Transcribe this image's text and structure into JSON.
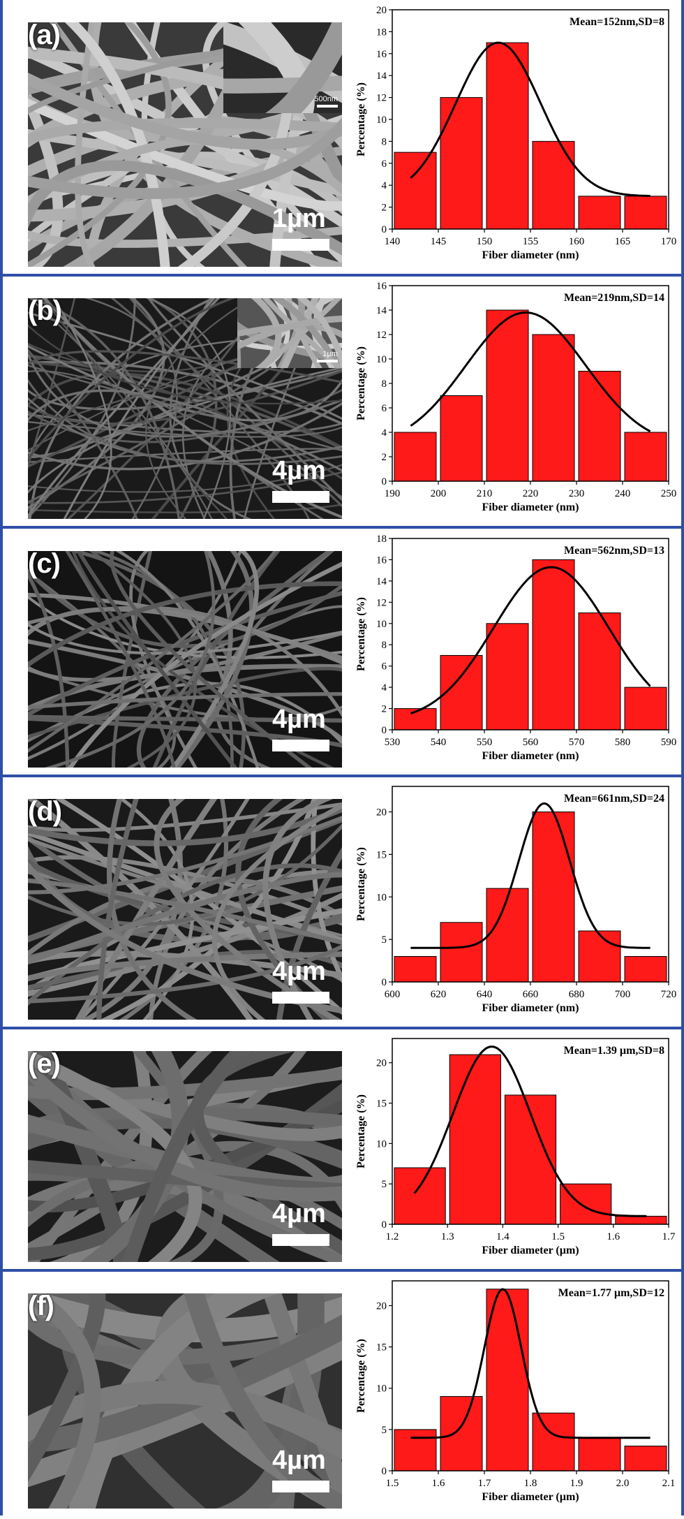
{
  "panels": [
    {
      "label": "(a)",
      "scale": "1µm",
      "inset_scale": "500nm",
      "chart_data": {
        "type": "bar",
        "categories": [
          142.5,
          147.5,
          152.5,
          157.5,
          162.5,
          167.5
        ],
        "values": [
          7,
          12,
          17,
          8,
          3,
          3
        ],
        "xlim": [
          140,
          170
        ],
        "xticks": [
          140,
          145,
          150,
          155,
          160,
          165,
          170
        ],
        "ylim": [
          0,
          20
        ],
        "yticks": [
          0,
          2,
          4,
          6,
          8,
          10,
          12,
          14,
          16,
          18,
          20
        ],
        "bar_width": 5,
        "xlabel": "Fiber diameter (nm)",
        "ylabel": "Percentage (%)",
        "annotation": "Mean=152nm,SD=8",
        "fit": {
          "mean": 151.5,
          "sd": 4.6,
          "amp": 14,
          "base": 3
        }
      }
    },
    {
      "label": "(b)",
      "scale": "4µm",
      "inset_scale": "1µm",
      "chart_data": {
        "type": "bar",
        "categories": [
          195,
          205,
          215,
          225,
          235,
          245
        ],
        "values": [
          4,
          7,
          14,
          12,
          9,
          4
        ],
        "xlim": [
          190,
          250
        ],
        "xticks": [
          190,
          200,
          210,
          220,
          230,
          240,
          250
        ],
        "ylim": [
          0,
          16
        ],
        "yticks": [
          0,
          2,
          4,
          6,
          8,
          10,
          12,
          14,
          16
        ],
        "bar_width": 10,
        "xlabel": "Fiber diameter (nm)",
        "ylabel": "Percentage (%)",
        "annotation": "Mean=219nm,SD=14",
        "fit": {
          "mean": 219,
          "sd": 13,
          "amp": 11,
          "base": 2.8
        }
      }
    },
    {
      "label": "(c)",
      "scale": "4µm",
      "inset_scale": "",
      "chart_data": {
        "type": "bar",
        "categories": [
          535,
          545,
          555,
          565,
          575,
          585
        ],
        "values": [
          2,
          7,
          10,
          16,
          11,
          4
        ],
        "xlim": [
          530,
          590
        ],
        "xticks": [
          530,
          540,
          550,
          560,
          570,
          580,
          590
        ],
        "ylim": [
          0,
          18
        ],
        "yticks": [
          0,
          2,
          4,
          6,
          8,
          10,
          12,
          14,
          16,
          18
        ],
        "bar_width": 10,
        "xlabel": "Fiber diameter (nm)",
        "ylabel": "Percentage (%)",
        "annotation": "Mean=562nm,SD=13",
        "fit": {
          "mean": 564.5,
          "sd": 12.5,
          "amp": 14.5,
          "base": 0.8
        }
      }
    },
    {
      "label": "(d)",
      "scale": "4µm",
      "inset_scale": "",
      "chart_data": {
        "type": "bar",
        "categories": [
          610,
          630,
          650,
          670,
          690,
          710
        ],
        "values": [
          3,
          7,
          11,
          20,
          6,
          3
        ],
        "xlim": [
          600,
          720
        ],
        "xticks": [
          600,
          620,
          640,
          660,
          680,
          700,
          720
        ],
        "ylim": [
          0,
          23
        ],
        "yticks": [
          0,
          5,
          10,
          15,
          20
        ],
        "bar_width": 20,
        "xlabel": "Fiber diameter (nm)",
        "ylabel": "Percentage (%)",
        "annotation": "Mean=661nm,SD=24",
        "fit": {
          "mean": 666,
          "sd": 11,
          "amp": 17,
          "base": 4
        }
      }
    },
    {
      "label": "(e)",
      "scale": "4µm",
      "inset_scale": "",
      "chart_data": {
        "type": "bar",
        "categories": [
          1.25,
          1.35,
          1.45,
          1.55,
          1.65
        ],
        "values": [
          7,
          21,
          16,
          5,
          1
        ],
        "xlim": [
          1.2,
          1.7
        ],
        "xticks": [
          "1.2",
          "1.3",
          "1.4",
          "1.5",
          "1.6",
          "1.7"
        ],
        "ylim": [
          0,
          23
        ],
        "yticks": [
          0,
          5,
          10,
          15,
          20
        ],
        "bar_width": 0.1,
        "xlabel": "Fiber diameter (µm)",
        "ylabel": "Percentage (%)",
        "annotation": "Mean=1.39 µm,SD=8",
        "fit": {
          "mean": 1.38,
          "sd": 0.07,
          "amp": 21,
          "base": 1
        }
      }
    },
    {
      "label": "(f)",
      "scale": "4µm",
      "inset_scale": "",
      "chart_data": {
        "type": "bar",
        "categories": [
          1.55,
          1.65,
          1.75,
          1.85,
          1.95,
          2.05
        ],
        "values": [
          5,
          9,
          22,
          7,
          4,
          3
        ],
        "xlim": [
          1.5,
          2.1
        ],
        "xticks": [
          "1.5",
          "1.6",
          "1.7",
          "1.8",
          "1.9",
          "2.0",
          "2.1"
        ],
        "ylim": [
          0,
          23
        ],
        "yticks": [
          0,
          5,
          10,
          15,
          20
        ],
        "bar_width": 0.1,
        "xlabel": "Fiber diameter (µm)",
        "ylabel": "Percentage (%)",
        "annotation": "Mean=1.77 µm,SD=12",
        "fit": {
          "mean": 1.74,
          "sd": 0.04,
          "amp": 18,
          "base": 4
        }
      }
    }
  ],
  "colors": {
    "bar": "#ff1a1a",
    "bar_edge": "#000000",
    "fit": "#000000",
    "frame": "#2f4fa6"
  }
}
